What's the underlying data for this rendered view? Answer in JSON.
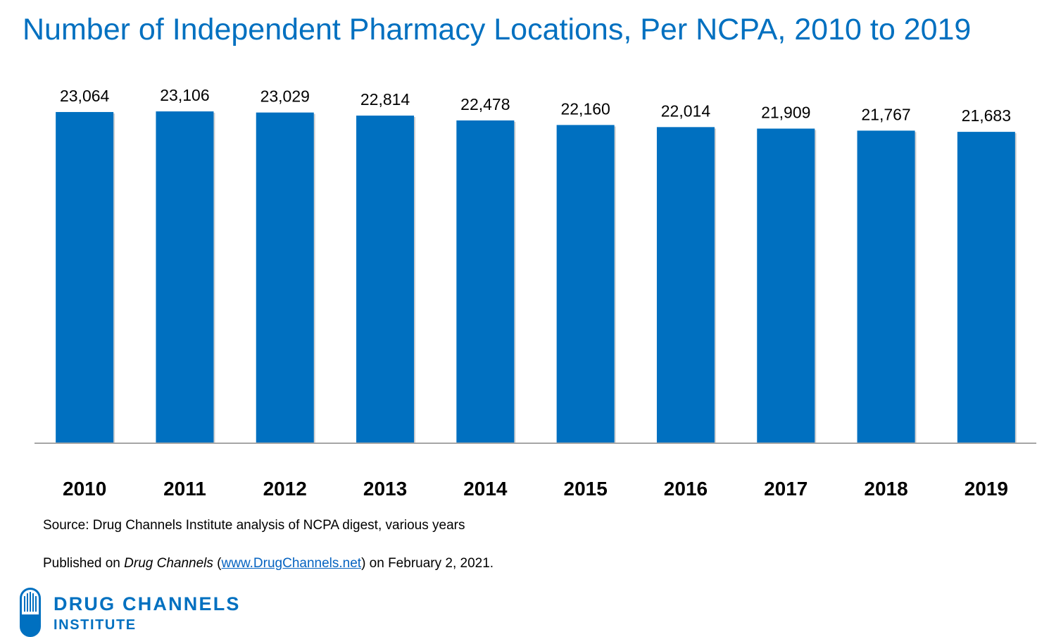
{
  "title": "Number of Independent Pharmacy Locations, Per NCPA, 2010 to 2019",
  "chart_data": {
    "type": "bar",
    "title": "Number of Independent Pharmacy Locations, Per NCPA, 2010 to 2019",
    "categories": [
      "2010",
      "2011",
      "2012",
      "2013",
      "2014",
      "2015",
      "2016",
      "2017",
      "2018",
      "2019"
    ],
    "values": [
      23064,
      23106,
      23029,
      22814,
      22478,
      22160,
      22014,
      21909,
      21767,
      21683
    ],
    "value_labels": [
      "23,064",
      "23,106",
      "23,029",
      "22,814",
      "22,478",
      "22,160",
      "22,014",
      "21,909",
      "21,767",
      "21,683"
    ],
    "xlabel": "",
    "ylabel": "",
    "ylim": [
      0,
      23700
    ],
    "grid": false,
    "bar_color": "#0070c0"
  },
  "footnotes": {
    "source": "Source: Drug Channels Institute analysis of NCPA digest, various years",
    "published_prefix": "Published on ",
    "published_italic": "Drug Channels",
    "published_open": " (",
    "published_link": "www.DrugChannels.net",
    "published_suffix": ") on February 2, 2021."
  },
  "logo": {
    "line1": "DRUG CHANNELS",
    "line2": "INSTITUTE",
    "icon": "pill-capsule-icon",
    "color": "#0070c0"
  },
  "colors": {
    "accent": "#0070c0",
    "axis": "#a6a6a6",
    "link": "#0563c1"
  }
}
